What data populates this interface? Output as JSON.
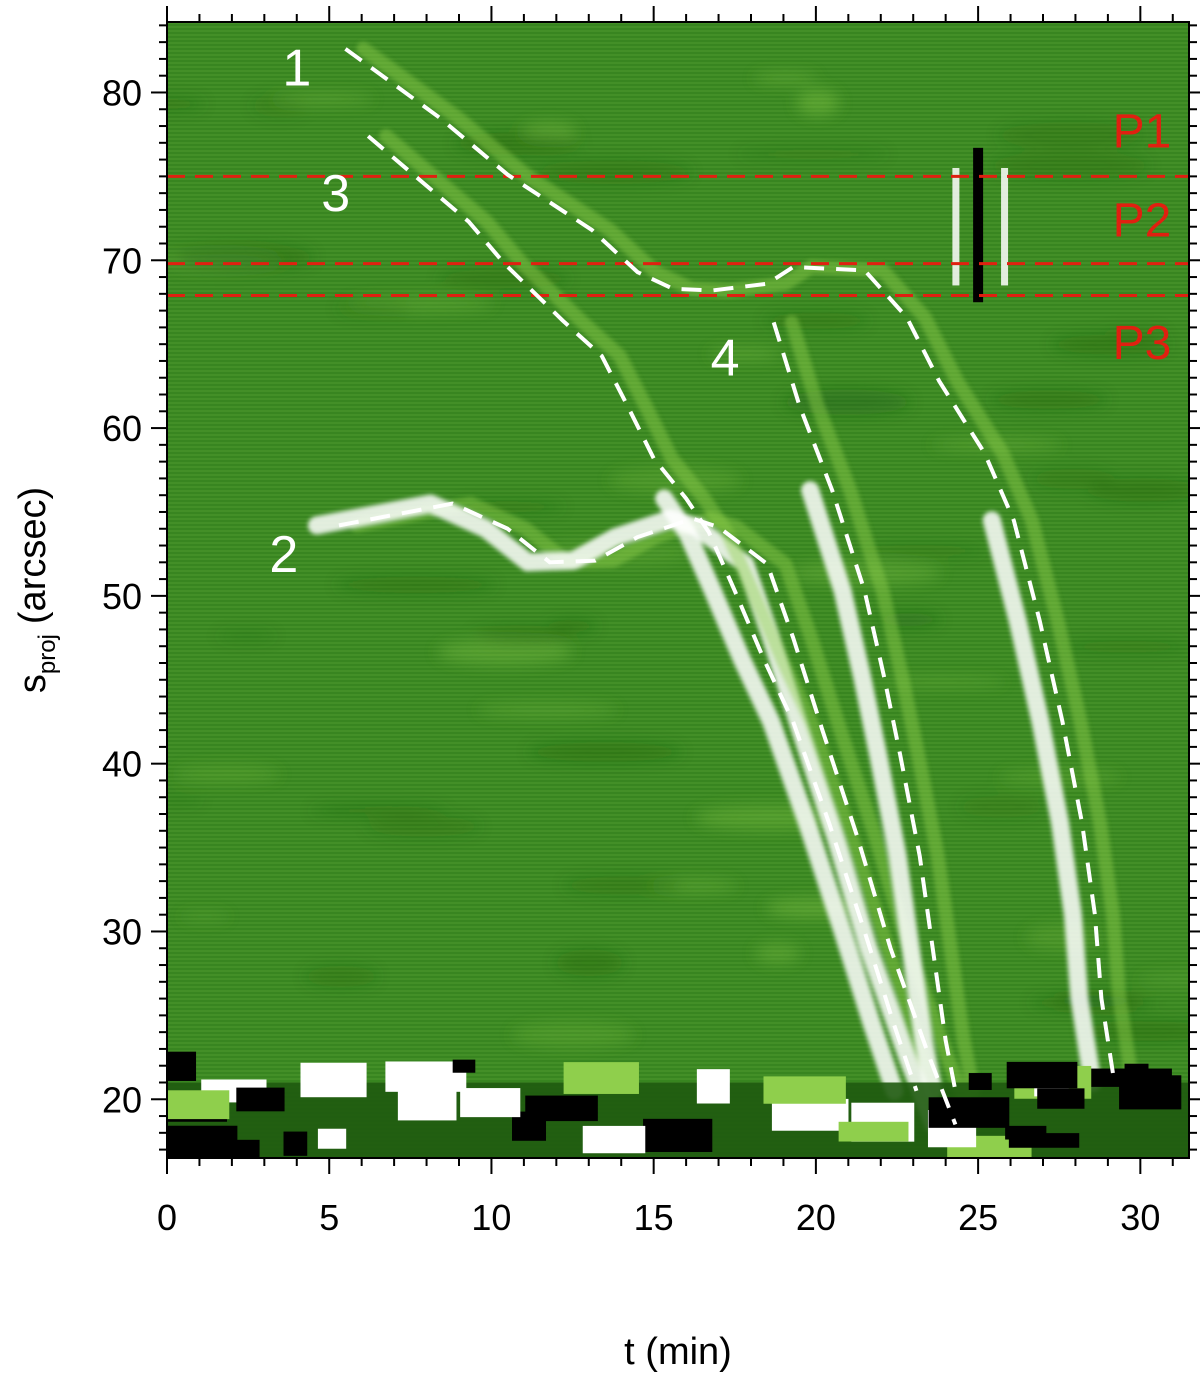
{
  "chart_data": {
    "type": "heatmap",
    "title": "",
    "xlabel": "t (min)",
    "ylabel_main": "s",
    "ylabel_sub": "proj",
    "ylabel_unit": "(arcsec)",
    "xlim": [
      0,
      31.5
    ],
    "ylim": [
      16.5,
      84.2
    ],
    "x_ticks": [
      0,
      5,
      10,
      15,
      20,
      25,
      30
    ],
    "y_ticks": [
      20,
      30,
      40,
      50,
      60,
      70,
      80
    ],
    "x_minor_step": 1,
    "y_minor_step": 1,
    "colormap": [
      "#000000",
      "#1f5a10",
      "#3c8a1f",
      "#8fcf4c",
      "#ffffff"
    ],
    "background_color": "#3e8a24",
    "reference_lines": [
      {
        "y": 75.0,
        "color": "#e02010"
      },
      {
        "y": 69.8,
        "color": "#e02010"
      },
      {
        "y": 67.9,
        "color": "#e02010"
      }
    ],
    "region_labels": [
      {
        "text": "P1",
        "y": 77.8,
        "color": "#e02010"
      },
      {
        "text": "P2",
        "y": 72.5,
        "color": "#e02010"
      },
      {
        "text": "P3",
        "y": 65.2,
        "color": "#e02010"
      }
    ],
    "series": [
      {
        "name": "1",
        "label_at": [
          4.0,
          81.5
        ],
        "points": [
          [
            5.5,
            82.6
          ],
          [
            8.4,
            78.5
          ],
          [
            10.5,
            75.1
          ],
          [
            13.1,
            71.8
          ],
          [
            14.5,
            69.3
          ],
          [
            15.6,
            68.3
          ],
          [
            16.8,
            68.2
          ],
          [
            18.5,
            68.6
          ],
          [
            19.3,
            69.6
          ],
          [
            21.5,
            69.4
          ],
          [
            22.8,
            66.6
          ],
          [
            23.8,
            62.8
          ],
          [
            25.2,
            58.5
          ],
          [
            26.1,
            54.5
          ],
          [
            26.9,
            48.5
          ],
          [
            27.6,
            42.5
          ],
          [
            28.2,
            36.5
          ],
          [
            28.6,
            31.0
          ],
          [
            28.8,
            26.0
          ],
          [
            29.2,
            21.0
          ]
        ]
      },
      {
        "name": "2",
        "label_at": [
          3.6,
          52.5
        ],
        "points": [
          [
            5.3,
            54.2
          ],
          [
            8.8,
            55.5
          ],
          [
            10.5,
            54.0
          ],
          [
            11.8,
            52.0
          ],
          [
            13.2,
            52.1
          ],
          [
            14.5,
            53.5
          ],
          [
            16.2,
            54.6
          ],
          [
            17.0,
            54.1
          ],
          [
            18.5,
            51.9
          ],
          [
            19.3,
            47.5
          ],
          [
            20.2,
            42.0
          ],
          [
            21.3,
            35.5
          ],
          [
            22.3,
            29.0
          ],
          [
            23.5,
            22.5
          ],
          [
            24.3,
            18.5
          ]
        ]
      },
      {
        "name": "3",
        "label_at": [
          5.2,
          74.0
        ],
        "points": [
          [
            6.2,
            77.4
          ],
          [
            9.3,
            72.3
          ],
          [
            10.4,
            69.8
          ],
          [
            12.2,
            66.4
          ],
          [
            13.4,
            64.3
          ],
          [
            14.2,
            61.3
          ],
          [
            15.0,
            58.2
          ],
          [
            16.0,
            55.8
          ],
          [
            16.7,
            53.8
          ],
          [
            17.5,
            50.3
          ],
          [
            18.4,
            46.2
          ],
          [
            19.3,
            42.5
          ],
          [
            20.4,
            36.5
          ],
          [
            21.5,
            30.0
          ],
          [
            22.4,
            24.5
          ],
          [
            23.1,
            20.5
          ]
        ]
      },
      {
        "name": "4",
        "label_at": [
          17.2,
          64.2
        ],
        "points": [
          [
            18.7,
            66.3
          ],
          [
            19.5,
            61.3
          ],
          [
            20.5,
            56.3
          ],
          [
            21.5,
            50.3
          ],
          [
            22.1,
            45.2
          ],
          [
            22.6,
            40.5
          ],
          [
            23.2,
            34.5
          ],
          [
            23.6,
            29.0
          ],
          [
            24.0,
            23.5
          ],
          [
            24.3,
            20.5
          ]
        ]
      }
    ],
    "grid": false,
    "legend": "none"
  }
}
